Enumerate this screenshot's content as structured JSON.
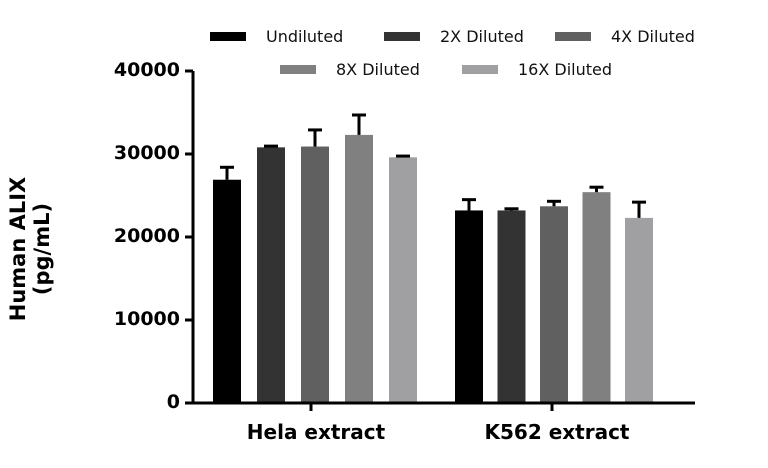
{
  "chart_data": {
    "type": "bar",
    "title": "",
    "xlabel": "",
    "ylabel": "Human ALIX (pg/mL)",
    "ylim": [
      0,
      40000
    ],
    "yticks": [
      0,
      10000,
      20000,
      30000,
      40000
    ],
    "ytick_labels": [
      "0",
      "10000",
      "20000",
      "30000",
      "40000"
    ],
    "categories": [
      "Hela extract",
      "K562 extract"
    ],
    "grid": false,
    "legend_position": "top",
    "series": [
      {
        "name": "Undiluted",
        "color": "#000000",
        "values": [
          26900,
          23200
        ],
        "error": [
          1500,
          1300
        ]
      },
      {
        "name": "2X Diluted",
        "color": "#333333",
        "values": [
          30800,
          23200
        ],
        "error": [
          150,
          200
        ]
      },
      {
        "name": "4X Diluted",
        "color": "#606060",
        "values": [
          30900,
          23700
        ],
        "error": [
          2000,
          600
        ]
      },
      {
        "name": "8X Diluted",
        "color": "#808080",
        "values": [
          32300,
          25400
        ],
        "error": [
          2400,
          600
        ]
      },
      {
        "name": "16X Diluted",
        "color": "#a0a0a2",
        "values": [
          29600,
          22300
        ],
        "error": [
          150,
          1900
        ]
      }
    ]
  }
}
